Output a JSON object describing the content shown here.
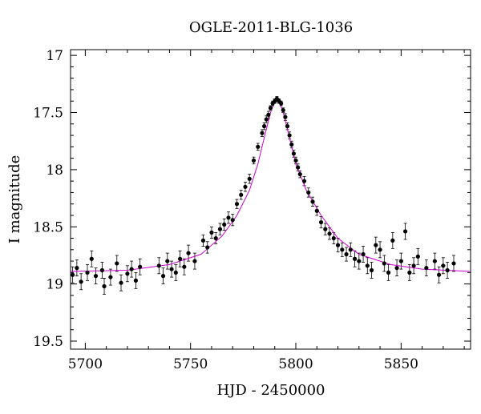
{
  "chart_data": {
    "type": "scatter",
    "title": "OGLE-2011-BLG-1036",
    "xlabel": "HJD - 2450000",
    "ylabel": "I magnitude",
    "xlim": [
      5693,
      5883
    ],
    "ylim": [
      19.57,
      16.95
    ],
    "y_inverted": true,
    "x_ticks": [
      5700,
      5750,
      5800,
      5850
    ],
    "x_tick_labels": [
      "5700",
      "5750",
      "5800",
      "5850"
    ],
    "y_ticks": [
      17,
      17.5,
      18,
      18.5,
      19,
      19.5
    ],
    "y_tick_labels": [
      "17",
      "17.5",
      "18",
      "18.5",
      "19",
      "19.5"
    ],
    "grid": false,
    "colors": {
      "data": "#000000",
      "model": "#cc00cc"
    },
    "model": {
      "name": "",
      "x": [
        5693,
        5720,
        5740,
        5755,
        5765,
        5772,
        5778,
        5782,
        5785,
        5788,
        5790,
        5791,
        5792,
        5794,
        5797,
        5800,
        5805,
        5812,
        5820,
        5830,
        5845,
        5860,
        5883
      ],
      "y": [
        18.89,
        18.88,
        18.83,
        18.74,
        18.58,
        18.4,
        18.18,
        17.95,
        17.72,
        17.5,
        17.4,
        17.38,
        17.4,
        17.5,
        17.72,
        17.95,
        18.18,
        18.4,
        18.6,
        18.74,
        18.83,
        18.87,
        18.89
      ]
    },
    "series": [
      {
        "name": "",
        "x": [
          5694,
          5696,
          5698,
          5701,
          5703,
          5705,
          5708,
          5709,
          5712,
          5715,
          5717,
          5720,
          5722,
          5724,
          5726,
          5735,
          5737,
          5739,
          5741,
          5743,
          5745,
          5747,
          5749,
          5752,
          5756,
          5758,
          5760,
          5762,
          5764,
          5766,
          5768,
          5770,
          5772,
          5774,
          5776,
          5778,
          5780,
          5782,
          5784,
          5785,
          5786,
          5787,
          5788,
          5789,
          5790,
          5791,
          5792,
          5793,
          5794,
          5795,
          5796,
          5797,
          5798,
          5799,
          5800,
          5801,
          5802,
          5804,
          5806,
          5808,
          5810,
          5812,
          5814,
          5816,
          5818,
          5820,
          5822,
          5824,
          5826,
          5828,
          5830,
          5832,
          5834,
          5836,
          5838,
          5840,
          5842,
          5844,
          5846,
          5848,
          5850,
          5852,
          5854,
          5856,
          5858,
          5862,
          5866,
          5868,
          5870,
          5872,
          5875
        ],
        "y": [
          18.92,
          18.86,
          18.98,
          18.9,
          18.78,
          18.93,
          18.88,
          19.02,
          18.94,
          18.82,
          18.99,
          18.91,
          18.87,
          18.97,
          18.85,
          18.84,
          18.93,
          18.8,
          18.87,
          18.9,
          18.78,
          18.85,
          18.73,
          18.8,
          18.62,
          18.68,
          18.55,
          18.6,
          18.52,
          18.48,
          18.42,
          18.44,
          18.3,
          18.22,
          18.15,
          18.08,
          17.92,
          17.8,
          17.68,
          17.62,
          17.56,
          17.52,
          17.46,
          17.42,
          17.4,
          17.38,
          17.4,
          17.42,
          17.48,
          17.54,
          17.62,
          17.7,
          17.78,
          17.86,
          17.92,
          17.98,
          18.04,
          18.1,
          18.2,
          18.28,
          18.36,
          18.46,
          18.52,
          18.56,
          18.6,
          18.66,
          18.7,
          18.74,
          18.7,
          18.78,
          18.8,
          18.74,
          18.84,
          18.88,
          18.66,
          18.7,
          18.82,
          18.9,
          18.62,
          18.86,
          18.8,
          18.54,
          18.9,
          18.84,
          18.76,
          18.86,
          18.8,
          18.92,
          18.84,
          18.88,
          18.82
        ],
        "yerr": [
          0.07,
          0.07,
          0.07,
          0.07,
          0.07,
          0.07,
          0.07,
          0.07,
          0.07,
          0.07,
          0.07,
          0.07,
          0.07,
          0.07,
          0.07,
          0.07,
          0.07,
          0.07,
          0.07,
          0.07,
          0.07,
          0.07,
          0.07,
          0.07,
          0.05,
          0.05,
          0.05,
          0.05,
          0.05,
          0.05,
          0.05,
          0.05,
          0.04,
          0.04,
          0.04,
          0.04,
          0.03,
          0.03,
          0.03,
          0.03,
          0.03,
          0.03,
          0.02,
          0.02,
          0.02,
          0.02,
          0.02,
          0.02,
          0.02,
          0.03,
          0.03,
          0.03,
          0.03,
          0.03,
          0.03,
          0.03,
          0.03,
          0.04,
          0.04,
          0.04,
          0.04,
          0.05,
          0.05,
          0.05,
          0.05,
          0.06,
          0.06,
          0.06,
          0.06,
          0.07,
          0.07,
          0.07,
          0.07,
          0.07,
          0.07,
          0.07,
          0.07,
          0.07,
          0.07,
          0.07,
          0.07,
          0.07,
          0.07,
          0.07,
          0.07,
          0.07,
          0.07,
          0.07,
          0.07,
          0.07,
          0.07
        ]
      }
    ]
  }
}
